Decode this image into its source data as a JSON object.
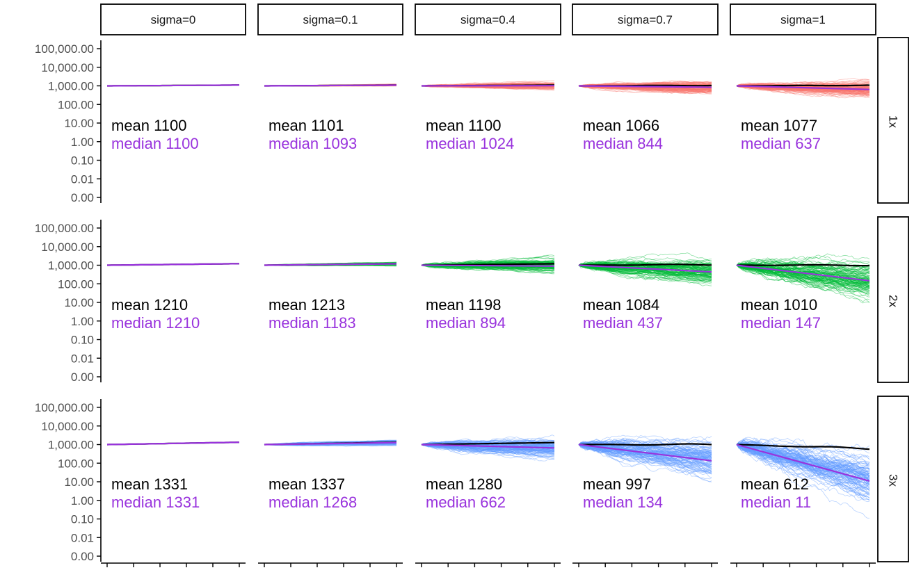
{
  "colors": {
    "mean_line": "#000000",
    "median": "#9933dd",
    "leverage_1x": "#f8766d",
    "leverage_2x": "#00ba38",
    "leverage_3x": "#619cff",
    "strip_border": "#000000",
    "axis": "#000000",
    "tick_label": "#4d4d4d"
  },
  "chart_data": {
    "type": "line",
    "facet_columns": [
      "sigma=0",
      "sigma=0.1",
      "sigma=0.4",
      "sigma=0.7",
      "sigma=1"
    ],
    "facet_rows": [
      "1x",
      "2x",
      "3x"
    ],
    "sigma_values": [
      0,
      0.1,
      0.4,
      0.7,
      1
    ],
    "y_scale": "log10",
    "y_tick_labels": [
      "100,000.00",
      "10,000.00",
      "1,000.00",
      "100.00",
      "10.00",
      "1.00",
      "0.10",
      "0.01",
      "0.00"
    ],
    "y_tick_values": [
      100000,
      10000,
      1000,
      100,
      10,
      1,
      0.1,
      0.01,
      0.001
    ],
    "x_ticks_per_panel": 6,
    "start_value": 1000,
    "grid": false,
    "panels": [
      {
        "row": "1x",
        "col": "sigma=0",
        "mean_label": "mean 1100",
        "median_label": "median 1100",
        "final_mean": 1100,
        "final_median": 1100
      },
      {
        "row": "1x",
        "col": "sigma=0.1",
        "mean_label": "mean 1101",
        "median_label": "median 1093",
        "final_mean": 1101,
        "final_median": 1093
      },
      {
        "row": "1x",
        "col": "sigma=0.4",
        "mean_label": "mean 1100",
        "median_label": "median 1024",
        "final_mean": 1100,
        "final_median": 1024
      },
      {
        "row": "1x",
        "col": "sigma=0.7",
        "mean_label": "mean 1066",
        "median_label": "median 844",
        "final_mean": 1066,
        "final_median": 844
      },
      {
        "row": "1x",
        "col": "sigma=1",
        "mean_label": "mean 1077",
        "median_label": "median 637",
        "final_mean": 1077,
        "final_median": 637
      },
      {
        "row": "2x",
        "col": "sigma=0",
        "mean_label": "mean 1210",
        "median_label": "median 1210",
        "final_mean": 1210,
        "final_median": 1210
      },
      {
        "row": "2x",
        "col": "sigma=0.1",
        "mean_label": "mean 1213",
        "median_label": "median 1183",
        "final_mean": 1213,
        "final_median": 1183
      },
      {
        "row": "2x",
        "col": "sigma=0.4",
        "mean_label": "mean 1198",
        "median_label": "median 894",
        "final_mean": 1198,
        "final_median": 894
      },
      {
        "row": "2x",
        "col": "sigma=0.7",
        "mean_label": "mean 1084",
        "median_label": "median 437",
        "final_mean": 1084,
        "final_median": 437
      },
      {
        "row": "2x",
        "col": "sigma=1",
        "mean_label": "mean 1010",
        "median_label": "median 147",
        "final_mean": 1010,
        "final_median": 147
      },
      {
        "row": "3x",
        "col": "sigma=0",
        "mean_label": "mean 1331",
        "median_label": "median 1331",
        "final_mean": 1331,
        "final_median": 1331
      },
      {
        "row": "3x",
        "col": "sigma=0.1",
        "mean_label": "mean 1337",
        "median_label": "median 1268",
        "final_mean": 1337,
        "final_median": 1268
      },
      {
        "row": "3x",
        "col": "sigma=0.4",
        "mean_label": "mean 1280",
        "median_label": "median 662",
        "final_mean": 1280,
        "final_median": 662
      },
      {
        "row": "3x",
        "col": "sigma=0.7",
        "mean_label": "mean 997",
        "median_label": "median 134",
        "final_mean": 997,
        "final_median": 134
      },
      {
        "row": "3x",
        "col": "sigma=1",
        "mean_label": "mean 612",
        "median_label": "median 11",
        "final_mean": 612,
        "final_median": 11
      }
    ]
  }
}
